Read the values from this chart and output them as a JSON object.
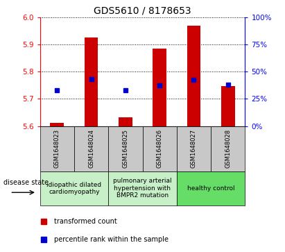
{
  "title": "GDS5610 / 8178653",
  "samples": [
    "GSM1648023",
    "GSM1648024",
    "GSM1648025",
    "GSM1648026",
    "GSM1648027",
    "GSM1648028"
  ],
  "red_bar_tops": [
    5.612,
    5.928,
    5.632,
    5.885,
    5.97,
    5.748
  ],
  "blue_squares": [
    5.733,
    5.772,
    5.733,
    5.75,
    5.77,
    5.752
  ],
  "bar_bottom": 5.6,
  "ylim": [
    5.6,
    6.0
  ],
  "yticks_left": [
    5.6,
    5.7,
    5.8,
    5.9,
    6.0
  ],
  "yticks_right": [
    0,
    25,
    50,
    75,
    100
  ],
  "right_ylim": [
    0,
    100
  ],
  "bar_color": "#cc0000",
  "square_color": "#0000cc",
  "sample_box_color": "#c8c8c8",
  "disease_groups": [
    {
      "label": "idiopathic dilated\ncardiomyopathy",
      "indices": [
        0,
        1
      ],
      "color": "#c8f0c8"
    },
    {
      "label": "pulmonary arterial\nhypertension with\nBMPR2 mutation",
      "indices": [
        2,
        3
      ],
      "color": "#c8f0c8"
    },
    {
      "label": "healthy control",
      "indices": [
        4,
        5
      ],
      "color": "#66dd66"
    }
  ],
  "legend_red": "transformed count",
  "legend_blue": "percentile rank within the sample",
  "disease_state_label": "disease state",
  "title_fontsize": 10,
  "tick_fontsize": 7.5,
  "sample_fontsize": 6,
  "disease_fontsize": 6.5
}
